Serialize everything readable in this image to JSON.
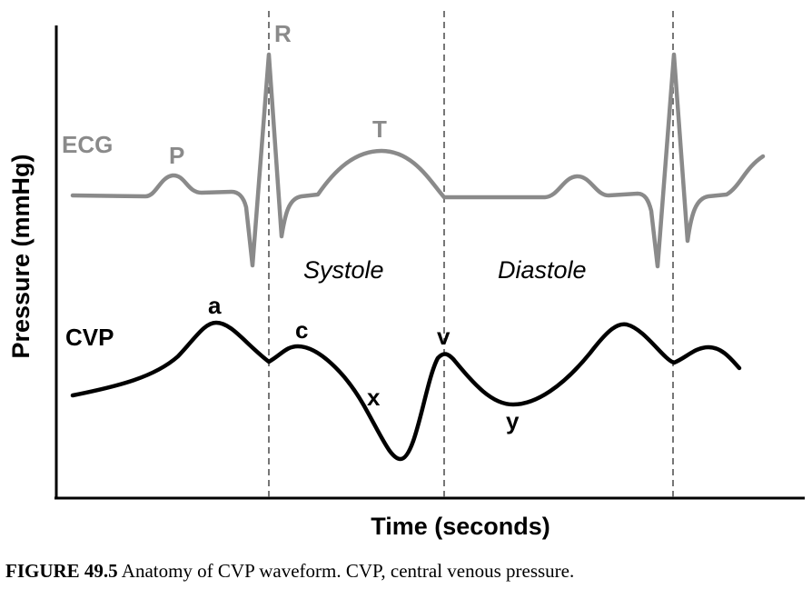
{
  "axes": {
    "y_label": "Pressure (mmHg)",
    "x_label": "Time (seconds)"
  },
  "ecg": {
    "label": "ECG",
    "color": "#8a8a8a",
    "wave_labels": {
      "p": "P",
      "r": "R",
      "t": "T"
    }
  },
  "cvp": {
    "label": "CVP",
    "color": "#000000",
    "wave_labels": {
      "a": "a",
      "c": "c",
      "x": "x",
      "v": "v",
      "y": "y"
    }
  },
  "phases": {
    "systole": "Systole",
    "diastole": "Diastole"
  },
  "caption": {
    "figure_number": "FIGURE 49.5",
    "text": " Anatomy of CVP waveform. CVP, central venous pressure."
  }
}
